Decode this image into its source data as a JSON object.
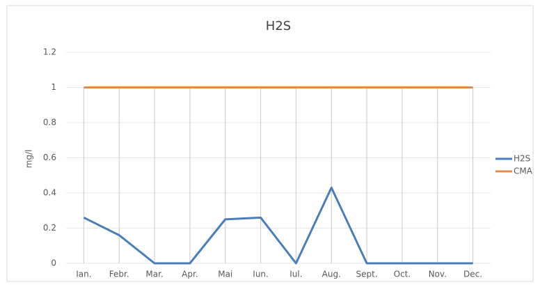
{
  "chart_data": {
    "type": "line",
    "title": "H2S",
    "y_label": "mg/l",
    "categories": [
      "Ian.",
      "Febr.",
      "Mar.",
      "Apr.",
      "Mai",
      "Iun.",
      "Iul.",
      "Aug.",
      "Sept.",
      "Oct.",
      "Nov.",
      "Dec."
    ],
    "series": [
      {
        "name": "H2S",
        "color": "#4a7ebb",
        "values": [
          0.26,
          0.16,
          0,
          0,
          0.25,
          0.26,
          0,
          0.43,
          0,
          0,
          0,
          0
        ]
      },
      {
        "name": "CMA",
        "color": "#e08a4e",
        "values": [
          1,
          1,
          1,
          1,
          1,
          1,
          1,
          1,
          1,
          1,
          1,
          1
        ]
      }
    ],
    "ylim": [
      0,
      1.2
    ],
    "yticks": [
      0,
      0.2,
      0.4,
      0.6,
      0.8,
      1,
      1.2
    ],
    "grid": true,
    "legend": "right"
  }
}
